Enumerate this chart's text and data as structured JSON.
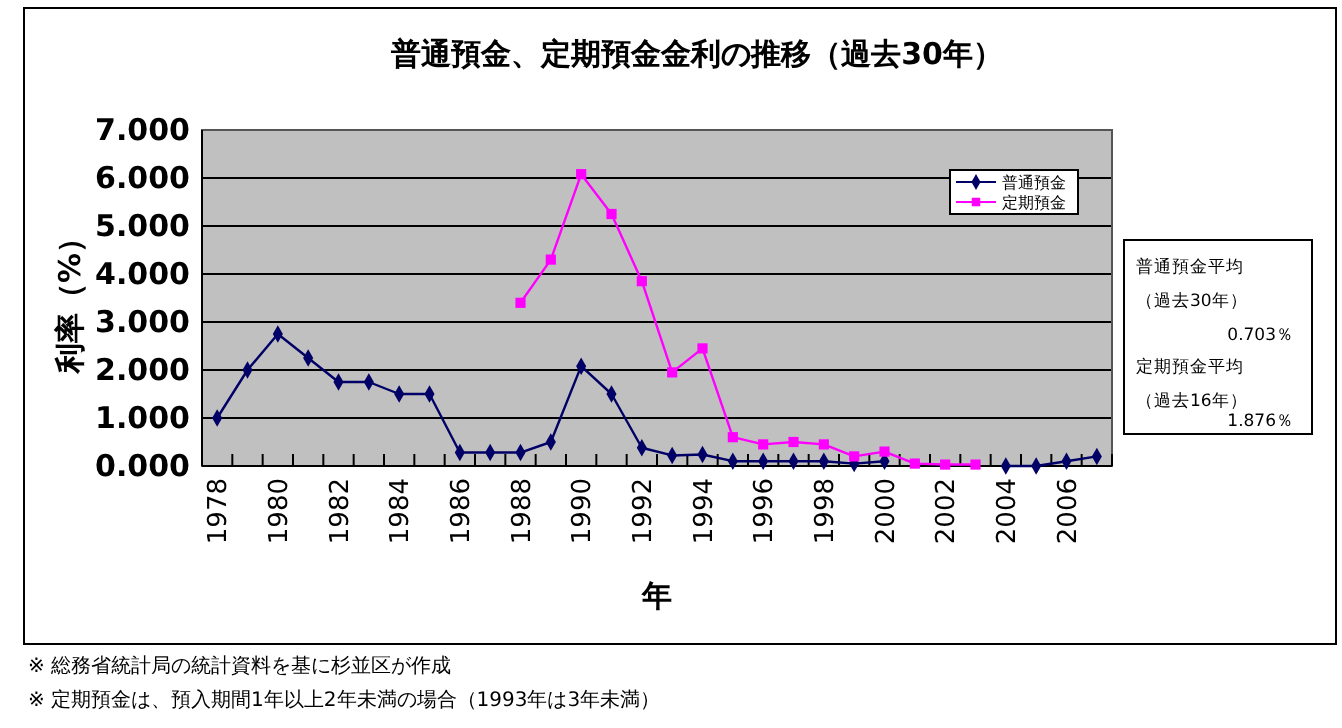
{
  "chart_data": {
    "type": "line",
    "title": "普通預金、定期預金金利の推移（過去30年）",
    "xlabel": "年",
    "ylabel": "利率（%）",
    "categories": [
      "1978",
      null,
      "1980",
      null,
      "1982",
      null,
      "1984",
      null,
      "1986",
      null,
      "1988",
      null,
      "1990",
      null,
      "1992",
      null,
      "1994",
      null,
      "1996",
      null,
      "1998",
      null,
      "2000",
      null,
      "2002",
      null,
      "2004",
      null,
      "2006",
      null
    ],
    "series": [
      {
        "name": "普通預金",
        "color": "#000066",
        "marker": "diamond",
        "values": [
          1.0,
          2.0,
          2.75,
          2.25,
          1.75,
          1.75,
          1.5,
          1.5,
          0.28,
          0.28,
          0.28,
          0.5,
          2.08,
          1.5,
          0.38,
          0.22,
          0.24,
          0.1,
          0.1,
          0.1,
          0.1,
          0.05,
          0.1,
          null,
          null,
          null,
          0,
          0,
          0.1,
          0.2
        ]
      },
      {
        "name": "定期預金",
        "color": "#ff00ff",
        "marker": "square",
        "values": [
          null,
          null,
          null,
          null,
          null,
          null,
          null,
          null,
          null,
          null,
          3.4,
          4.3,
          6.08,
          5.25,
          3.85,
          1.95,
          2.45,
          0.6,
          0.45,
          0.5,
          0.45,
          0.2,
          0.3,
          0.05,
          0.03,
          0.03,
          null,
          null,
          null,
          null
        ]
      }
    ],
    "ylim": [
      0,
      7
    ],
    "yticks": [
      {
        "value": 0,
        "label": "0.000"
      },
      {
        "value": 1,
        "label": "1.000"
      },
      {
        "value": 2,
        "label": "2.000"
      },
      {
        "value": 3,
        "label": "3.000"
      },
      {
        "value": 4,
        "label": "4.000"
      },
      {
        "value": 5,
        "label": "5.000"
      },
      {
        "value": 6,
        "label": "6.000"
      },
      {
        "value": 7,
        "label": "7.000"
      }
    ],
    "grid": "y",
    "legend": "top right",
    "annotations": [
      "普通預金平均",
      "（過去30年）",
      "0.703％",
      "定期預金平均",
      "（過去16年）",
      "1.876％",
      "※  総務省統計局の統計資料を基に杉並区が作成",
      "※  定期預金は、預入期間1年以上2年未満の場合（1993年は3年未満）"
    ]
  }
}
